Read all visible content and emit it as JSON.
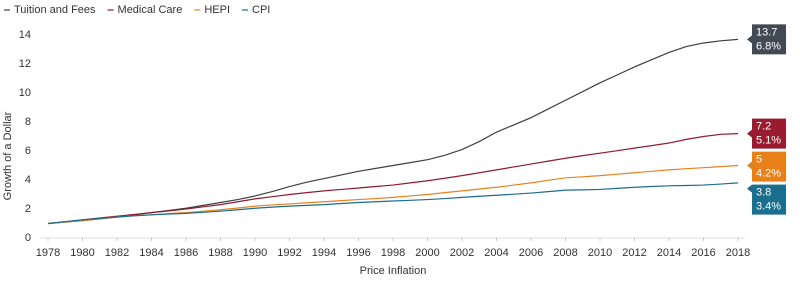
{
  "chart_data": {
    "type": "line",
    "x_label": "Price Inflation",
    "y_label": "Growth of a Dollar",
    "x": [
      1978,
      1979,
      1980,
      1981,
      1982,
      1983,
      1984,
      1985,
      1986,
      1987,
      1988,
      1989,
      1990,
      1991,
      1992,
      1993,
      1994,
      1995,
      1996,
      1997,
      1998,
      1999,
      2000,
      2001,
      2002,
      2003,
      2004,
      2005,
      2006,
      2007,
      2008,
      2009,
      2010,
      2011,
      2012,
      2013,
      2014,
      2015,
      2016,
      2017,
      2018
    ],
    "xlim": [
      1978,
      2018
    ],
    "xticks": [
      1978,
      1980,
      1982,
      1984,
      1986,
      1988,
      1990,
      1992,
      1994,
      1996,
      1998,
      2000,
      2002,
      2004,
      2006,
      2008,
      2010,
      2012,
      2014,
      2016,
      2018
    ],
    "ylim": [
      0,
      14
    ],
    "yticks": [
      0,
      2,
      4,
      6,
      8,
      10,
      12,
      14
    ],
    "legend": "top-left",
    "series": [
      {
        "name": "Tuition and Fees",
        "color": "#3f3f3f",
        "label_color": "#414a54",
        "values": [
          1.0,
          1.1,
          1.2,
          1.32,
          1.45,
          1.6,
          1.75,
          1.9,
          2.05,
          2.25,
          2.45,
          2.65,
          2.9,
          3.2,
          3.55,
          3.85,
          4.1,
          4.35,
          4.6,
          4.8,
          5.0,
          5.2,
          5.4,
          5.7,
          6.1,
          6.65,
          7.3,
          7.8,
          8.3,
          8.9,
          9.5,
          10.1,
          10.7,
          11.25,
          11.8,
          12.3,
          12.8,
          13.2,
          13.45,
          13.6,
          13.7
        ],
        "end_rate": {
          "value": 6.8,
          "label": "6.8%"
        }
      },
      {
        "name": "Medical Care",
        "color": "#8e1c30",
        "label_color": "#9a1b2f",
        "values": [
          1.0,
          1.12,
          1.25,
          1.38,
          1.5,
          1.62,
          1.75,
          1.87,
          2.0,
          2.15,
          2.3,
          2.5,
          2.7,
          2.85,
          3.0,
          3.13,
          3.25,
          3.35,
          3.45,
          3.55,
          3.65,
          3.8,
          3.95,
          4.12,
          4.3,
          4.5,
          4.7,
          4.9,
          5.1,
          5.3,
          5.5,
          5.68,
          5.85,
          6.02,
          6.2,
          6.37,
          6.55,
          6.8,
          7.0,
          7.15,
          7.2
        ],
        "end_rate": {
          "value": 5.1,
          "label": "5.1%"
        }
      },
      {
        "name": "HEPI",
        "color": "#e6821e",
        "label_color": "#e8801a",
        "values": [
          1.0,
          1.1,
          1.2,
          1.33,
          1.45,
          1.53,
          1.6,
          1.68,
          1.75,
          1.85,
          1.95,
          2.07,
          2.2,
          2.28,
          2.35,
          2.43,
          2.5,
          2.58,
          2.65,
          2.72,
          2.8,
          2.9,
          3.0,
          3.13,
          3.25,
          3.38,
          3.5,
          3.65,
          3.8,
          3.98,
          4.15,
          4.22,
          4.3,
          4.4,
          4.5,
          4.6,
          4.7,
          4.78,
          4.85,
          4.92,
          5.0
        ],
        "end_rate": {
          "value": 4.2,
          "label": "4.2%"
        }
      },
      {
        "name": "CPI",
        "color": "#1b6d8c",
        "label_color": "#1b6f8e",
        "values": [
          1.0,
          1.12,
          1.25,
          1.35,
          1.45,
          1.53,
          1.6,
          1.65,
          1.7,
          1.77,
          1.85,
          1.95,
          2.05,
          2.13,
          2.2,
          2.25,
          2.3,
          2.38,
          2.45,
          2.5,
          2.55,
          2.6,
          2.65,
          2.72,
          2.8,
          2.88,
          2.95,
          3.02,
          3.1,
          3.2,
          3.3,
          3.32,
          3.35,
          3.42,
          3.5,
          3.55,
          3.6,
          3.62,
          3.65,
          3.72,
          3.8
        ],
        "end_rate": {
          "value": 3.4,
          "label": "3.4%"
        }
      }
    ]
  }
}
